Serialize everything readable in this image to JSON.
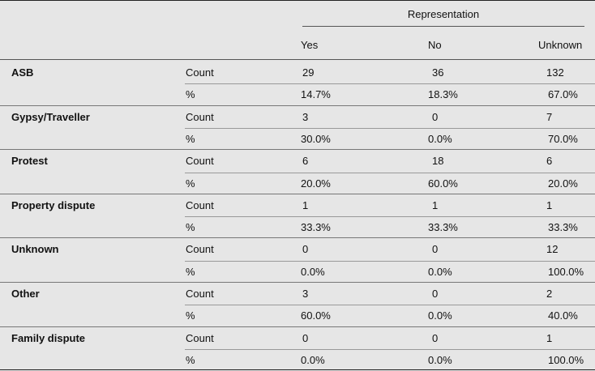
{
  "header": {
    "group_label": "Representation",
    "columns": [
      "Yes",
      "No",
      "Unknown"
    ]
  },
  "stat_labels": {
    "count": "Count",
    "percent": "%"
  },
  "groups": [
    {
      "name": "ASB",
      "count": [
        "29",
        "36",
        "132"
      ],
      "percent": [
        "14.7%",
        "18.3%",
        "67.0%"
      ]
    },
    {
      "name": "Gypsy/Traveller",
      "count": [
        "3",
        "0",
        "7"
      ],
      "percent": [
        "30.0%",
        "0.0%",
        "70.0%"
      ]
    },
    {
      "name": "Protest",
      "count": [
        "6",
        "18",
        "6"
      ],
      "percent": [
        "20.0%",
        "60.0%",
        "20.0%"
      ]
    },
    {
      "name": "Property dispute",
      "count": [
        "1",
        "1",
        "1"
      ],
      "percent": [
        "33.3%",
        "33.3%",
        "33.3%"
      ]
    },
    {
      "name": "Unknown",
      "count": [
        "0",
        "0",
        "12"
      ],
      "percent": [
        "0.0%",
        "0.0%",
        "100.0%"
      ]
    },
    {
      "name": "Other",
      "count": [
        "3",
        "0",
        "2"
      ],
      "percent": [
        "60.0%",
        "0.0%",
        "40.0%"
      ]
    },
    {
      "name": "Family dispute",
      "count": [
        "0",
        "0",
        "1"
      ],
      "percent": [
        "0.0%",
        "0.0%",
        "100.0%"
      ]
    }
  ]
}
